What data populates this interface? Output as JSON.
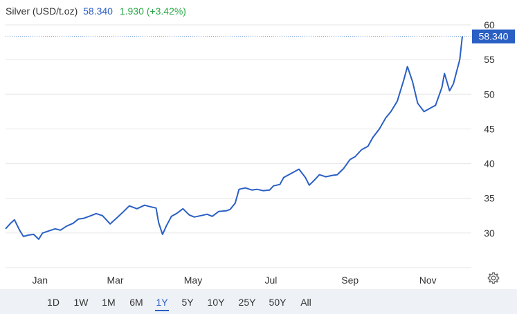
{
  "header": {
    "name": "Silver (USD/t.oz)",
    "price": "58.340",
    "change": "1.930 (+3.42%)"
  },
  "ranges": [
    "1D",
    "1W",
    "1M",
    "6M",
    "1Y",
    "5Y",
    "10Y",
    "25Y",
    "50Y",
    "All"
  ],
  "active_range": "1Y",
  "colors": {
    "line": "#2a5fc4",
    "positive": "#2aa845",
    "grid": "#e6e6e6",
    "label_bg": "#2a5fc4"
  },
  "chart_data": {
    "type": "line",
    "title": "",
    "xlabel": "",
    "ylabel": "",
    "ylim": [
      25,
      60
    ],
    "yticks": [
      30,
      35,
      40,
      45,
      50,
      55,
      60
    ],
    "xticks": [
      "Jan",
      "Mar",
      "May",
      "Jul",
      "Sep",
      "Nov"
    ],
    "last_value_label": "58.340",
    "grid": "horizontal",
    "series": [
      {
        "x": [
          "2024-12-05",
          "2024-12-09",
          "2024-12-12",
          "2024-12-16",
          "2024-12-19",
          "2024-12-23",
          "2024-12-27",
          "2024-12-31",
          "2025-01-03",
          "2025-01-08",
          "2025-01-13",
          "2025-01-17",
          "2025-01-22",
          "2025-01-27",
          "2025-01-31",
          "2025-02-04",
          "2025-02-10",
          "2025-02-14",
          "2025-02-19",
          "2025-02-25",
          "2025-03-03",
          "2025-03-07",
          "2025-03-12",
          "2025-03-18",
          "2025-03-24",
          "2025-03-28",
          "2025-04-02",
          "2025-04-04",
          "2025-04-07",
          "2025-04-10",
          "2025-04-14",
          "2025-04-18",
          "2025-04-23",
          "2025-04-28",
          "2025-05-02",
          "2025-05-07",
          "2025-05-12",
          "2025-05-16",
          "2025-05-21",
          "2025-05-27",
          "2025-05-30",
          "2025-06-03",
          "2025-06-06",
          "2025-06-11",
          "2025-06-16",
          "2025-06-20",
          "2025-06-25",
          "2025-06-30",
          "2025-07-03",
          "2025-07-08",
          "2025-07-11",
          "2025-07-14",
          "2025-07-18",
          "2025-07-23",
          "2025-07-28",
          "2025-07-31",
          "2025-08-04",
          "2025-08-08",
          "2025-08-13",
          "2025-08-18",
          "2025-08-22",
          "2025-08-27",
          "2025-09-01",
          "2025-09-05",
          "2025-09-10",
          "2025-09-15",
          "2025-09-19",
          "2025-09-24",
          "2025-09-29",
          "2025-10-03",
          "2025-10-08",
          "2025-10-13",
          "2025-10-16",
          "2025-10-20",
          "2025-10-24",
          "2025-10-29",
          "2025-11-03",
          "2025-11-07",
          "2025-11-12",
          "2025-11-14",
          "2025-11-18",
          "2025-11-21",
          "2025-11-26",
          "2025-11-28"
        ],
        "values": [
          30.6,
          31.4,
          31.9,
          30.4,
          29.5,
          29.7,
          29.8,
          29.1,
          30.0,
          30.3,
          30.6,
          30.4,
          31.0,
          31.4,
          32.0,
          32.1,
          32.5,
          32.8,
          32.5,
          31.3,
          32.3,
          33.0,
          33.9,
          33.5,
          34.0,
          33.8,
          33.6,
          31.5,
          29.8,
          31.0,
          32.4,
          32.8,
          33.5,
          32.6,
          32.3,
          32.5,
          32.7,
          32.4,
          33.1,
          33.2,
          33.4,
          34.3,
          36.3,
          36.5,
          36.2,
          36.3,
          36.1,
          36.2,
          36.8,
          37.0,
          38.0,
          38.3,
          38.7,
          39.2,
          38.0,
          36.9,
          37.6,
          38.4,
          38.1,
          38.3,
          38.4,
          39.3,
          40.6,
          41.0,
          42.0,
          42.5,
          43.8,
          45.0,
          46.6,
          47.5,
          49.0,
          52.0,
          54.0,
          51.8,
          48.7,
          47.5,
          48.0,
          48.4,
          51.0,
          53.0,
          50.5,
          51.5,
          55.0,
          58.34
        ]
      }
    ]
  }
}
